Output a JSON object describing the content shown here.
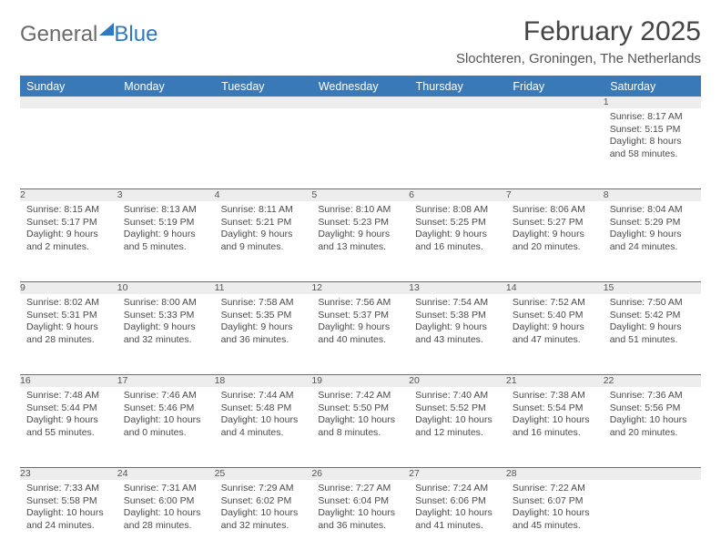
{
  "logo": {
    "word1": "General",
    "word2": "Blue"
  },
  "title": "February 2025",
  "subtitle": "Slochteren, Groningen, The Netherlands",
  "colors": {
    "header_bg": "#3a79b7",
    "header_text": "#ffffff",
    "daynum_bg": "#ededed",
    "rule": "#3a79b7",
    "text": "#4a4a4a"
  },
  "day_headers": [
    "Sunday",
    "Monday",
    "Tuesday",
    "Wednesday",
    "Thursday",
    "Friday",
    "Saturday"
  ],
  "weeks": [
    {
      "nums": [
        "",
        "",
        "",
        "",
        "",
        "",
        "1"
      ],
      "cells": [
        null,
        null,
        null,
        null,
        null,
        null,
        {
          "sunrise": "8:17 AM",
          "sunset": "5:15 PM",
          "daylight": "8 hours and 58 minutes."
        }
      ]
    },
    {
      "nums": [
        "2",
        "3",
        "4",
        "5",
        "6",
        "7",
        "8"
      ],
      "cells": [
        {
          "sunrise": "8:15 AM",
          "sunset": "5:17 PM",
          "daylight": "9 hours and 2 minutes."
        },
        {
          "sunrise": "8:13 AM",
          "sunset": "5:19 PM",
          "daylight": "9 hours and 5 minutes."
        },
        {
          "sunrise": "8:11 AM",
          "sunset": "5:21 PM",
          "daylight": "9 hours and 9 minutes."
        },
        {
          "sunrise": "8:10 AM",
          "sunset": "5:23 PM",
          "daylight": "9 hours and 13 minutes."
        },
        {
          "sunrise": "8:08 AM",
          "sunset": "5:25 PM",
          "daylight": "9 hours and 16 minutes."
        },
        {
          "sunrise": "8:06 AM",
          "sunset": "5:27 PM",
          "daylight": "9 hours and 20 minutes."
        },
        {
          "sunrise": "8:04 AM",
          "sunset": "5:29 PM",
          "daylight": "9 hours and 24 minutes."
        }
      ]
    },
    {
      "nums": [
        "9",
        "10",
        "11",
        "12",
        "13",
        "14",
        "15"
      ],
      "cells": [
        {
          "sunrise": "8:02 AM",
          "sunset": "5:31 PM",
          "daylight": "9 hours and 28 minutes."
        },
        {
          "sunrise": "8:00 AM",
          "sunset": "5:33 PM",
          "daylight": "9 hours and 32 minutes."
        },
        {
          "sunrise": "7:58 AM",
          "sunset": "5:35 PM",
          "daylight": "9 hours and 36 minutes."
        },
        {
          "sunrise": "7:56 AM",
          "sunset": "5:37 PM",
          "daylight": "9 hours and 40 minutes."
        },
        {
          "sunrise": "7:54 AM",
          "sunset": "5:38 PM",
          "daylight": "9 hours and 43 minutes."
        },
        {
          "sunrise": "7:52 AM",
          "sunset": "5:40 PM",
          "daylight": "9 hours and 47 minutes."
        },
        {
          "sunrise": "7:50 AM",
          "sunset": "5:42 PM",
          "daylight": "9 hours and 51 minutes."
        }
      ]
    },
    {
      "nums": [
        "16",
        "17",
        "18",
        "19",
        "20",
        "21",
        "22"
      ],
      "cells": [
        {
          "sunrise": "7:48 AM",
          "sunset": "5:44 PM",
          "daylight": "9 hours and 55 minutes."
        },
        {
          "sunrise": "7:46 AM",
          "sunset": "5:46 PM",
          "daylight": "10 hours and 0 minutes."
        },
        {
          "sunrise": "7:44 AM",
          "sunset": "5:48 PM",
          "daylight": "10 hours and 4 minutes."
        },
        {
          "sunrise": "7:42 AM",
          "sunset": "5:50 PM",
          "daylight": "10 hours and 8 minutes."
        },
        {
          "sunrise": "7:40 AM",
          "sunset": "5:52 PM",
          "daylight": "10 hours and 12 minutes."
        },
        {
          "sunrise": "7:38 AM",
          "sunset": "5:54 PM",
          "daylight": "10 hours and 16 minutes."
        },
        {
          "sunrise": "7:36 AM",
          "sunset": "5:56 PM",
          "daylight": "10 hours and 20 minutes."
        }
      ]
    },
    {
      "nums": [
        "23",
        "24",
        "25",
        "26",
        "27",
        "28",
        ""
      ],
      "cells": [
        {
          "sunrise": "7:33 AM",
          "sunset": "5:58 PM",
          "daylight": "10 hours and 24 minutes."
        },
        {
          "sunrise": "7:31 AM",
          "sunset": "6:00 PM",
          "daylight": "10 hours and 28 minutes."
        },
        {
          "sunrise": "7:29 AM",
          "sunset": "6:02 PM",
          "daylight": "10 hours and 32 minutes."
        },
        {
          "sunrise": "7:27 AM",
          "sunset": "6:04 PM",
          "daylight": "10 hours and 36 minutes."
        },
        {
          "sunrise": "7:24 AM",
          "sunset": "6:06 PM",
          "daylight": "10 hours and 41 minutes."
        },
        {
          "sunrise": "7:22 AM",
          "sunset": "6:07 PM",
          "daylight": "10 hours and 45 minutes."
        },
        null
      ]
    }
  ],
  "labels": {
    "sunrise": "Sunrise:",
    "sunset": "Sunset:",
    "daylight": "Daylight:"
  }
}
